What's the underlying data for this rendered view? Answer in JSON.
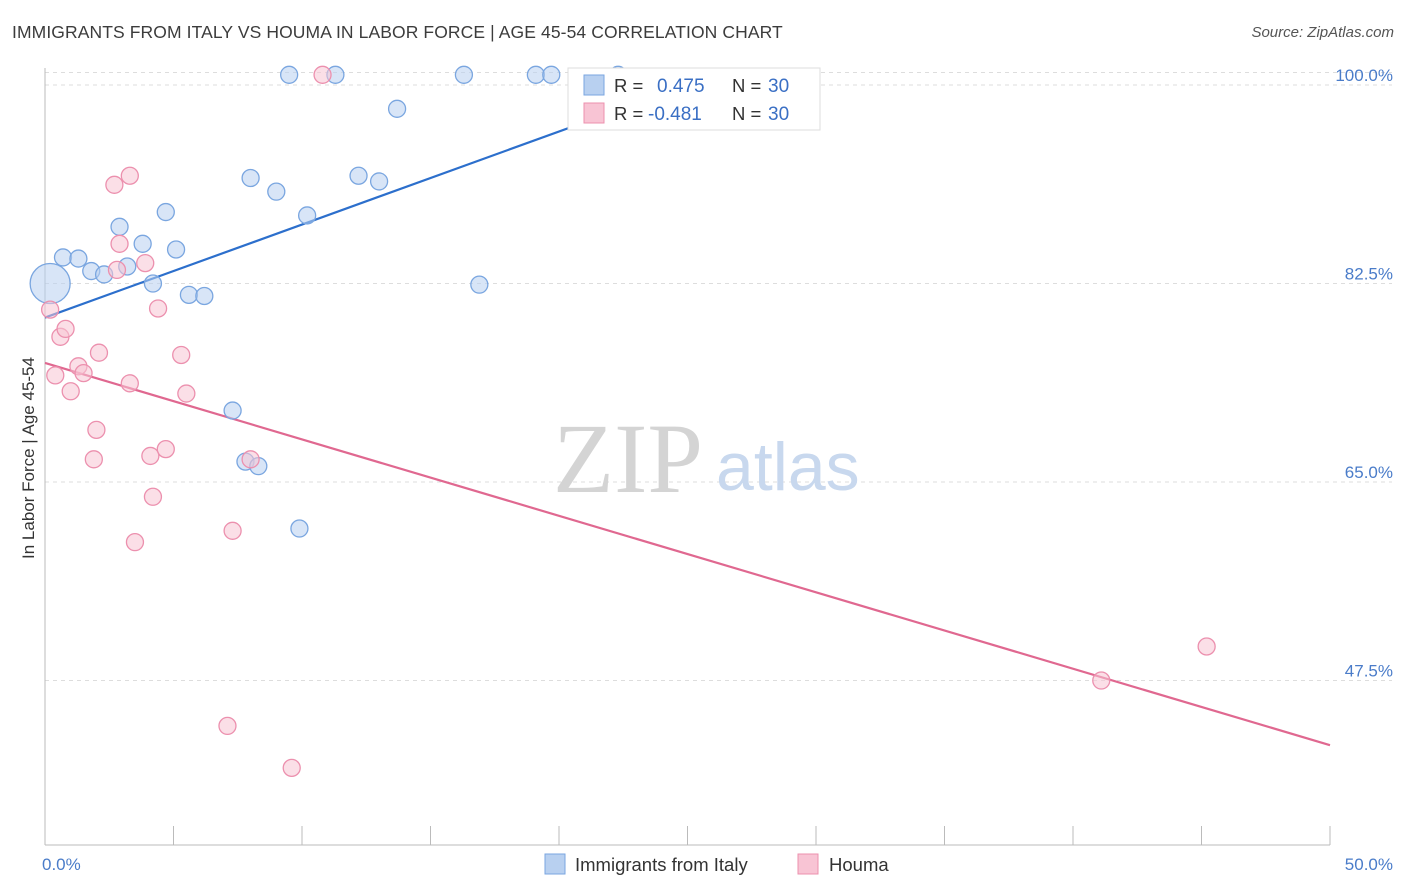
{
  "header": {
    "title": "IMMIGRANTS FROM ITALY VS HOUMA IN LABOR FORCE | AGE 45-54 CORRELATION CHART",
    "source": "Source: ZipAtlas.com"
  },
  "watermark": {
    "zip": "ZIP",
    "atlas": "atlas"
  },
  "chart_data": {
    "type": "scatter",
    "title": "IMMIGRANTS FROM ITALY VS HOUMA IN LABOR FORCE | AGE 45-54 CORRELATION CHART",
    "xlabel": "",
    "ylabel": "In Labor Force | Age 45-54",
    "xlim": [
      0,
      50
    ],
    "ylim": [
      33,
      101.5
    ],
    "x_tick_labels": [
      "0.0%",
      "50.0%"
    ],
    "y_ticks": [
      47.5,
      65.0,
      82.5,
      100.0
    ],
    "y_tick_labels": [
      "47.5%",
      "65.0%",
      "82.5%",
      "100.0%"
    ],
    "grid": true,
    "legend": {
      "placement": "top-center",
      "entries": [
        {
          "r_label": "R =",
          "r_value": "0.475",
          "n_label": "N =",
          "n_value": "30"
        },
        {
          "r_label": "R =",
          "r_value": "-0.481",
          "n_label": "N =",
          "n_value": "30"
        }
      ]
    },
    "bottom_legend": [
      "Immigrants from Italy",
      "Houma"
    ],
    "colors": {
      "italy_fill": "#b8d0f0",
      "italy_stroke": "#7aa6e0",
      "italy_line": "#2c6fcc",
      "houma_fill": "#f8c4d4",
      "houma_stroke": "#ec90ae",
      "houma_line": "#e06890",
      "grid": "#dddddd",
      "axis": "#bbbbbb",
      "tick_label": "#4a7cc9"
    },
    "series": [
      {
        "name": "Immigrants from Italy",
        "r": 0.475,
        "n": 30,
        "trend": {
          "x": [
            0.0,
            25.0
          ],
          "y": [
            79.5,
            100.0
          ]
        },
        "points": [
          {
            "x": 0.2,
            "y": 82.5,
            "big": true
          },
          {
            "x": 0.7,
            "y": 84.8
          },
          {
            "x": 1.3,
            "y": 84.7
          },
          {
            "x": 1.8,
            "y": 83.6
          },
          {
            "x": 2.3,
            "y": 83.3
          },
          {
            "x": 2.9,
            "y": 87.5
          },
          {
            "x": 3.2,
            "y": 84.0
          },
          {
            "x": 3.8,
            "y": 86.0
          },
          {
            "x": 4.2,
            "y": 82.5
          },
          {
            "x": 4.7,
            "y": 88.8
          },
          {
            "x": 5.1,
            "y": 85.5
          },
          {
            "x": 5.6,
            "y": 81.5
          },
          {
            "x": 6.2,
            "y": 81.4
          },
          {
            "x": 7.3,
            "y": 71.3
          },
          {
            "x": 7.8,
            "y": 66.8
          },
          {
            "x": 8.3,
            "y": 66.4
          },
          {
            "x": 8.0,
            "y": 91.8
          },
          {
            "x": 9.0,
            "y": 90.6
          },
          {
            "x": 9.5,
            "y": 100.9
          },
          {
            "x": 9.9,
            "y": 60.9
          },
          {
            "x": 10.2,
            "y": 88.5
          },
          {
            "x": 11.3,
            "y": 100.9
          },
          {
            "x": 12.2,
            "y": 92.0
          },
          {
            "x": 13.0,
            "y": 91.5
          },
          {
            "x": 13.7,
            "y": 97.9
          },
          {
            "x": 16.3,
            "y": 100.9
          },
          {
            "x": 16.9,
            "y": 82.4
          },
          {
            "x": 19.1,
            "y": 100.9
          },
          {
            "x": 19.7,
            "y": 100.9
          },
          {
            "x": 22.3,
            "y": 100.9
          }
        ]
      },
      {
        "name": "Houma",
        "r": -0.481,
        "n": 30,
        "trend": {
          "x": [
            0.0,
            50.0
          ],
          "y": [
            75.5,
            41.8
          ]
        },
        "points": [
          {
            "x": 0.2,
            "y": 80.2
          },
          {
            "x": 0.4,
            "y": 74.4
          },
          {
            "x": 0.6,
            "y": 77.8
          },
          {
            "x": 0.8,
            "y": 78.5
          },
          {
            "x": 1.0,
            "y": 73.0
          },
          {
            "x": 1.3,
            "y": 75.2
          },
          {
            "x": 1.5,
            "y": 74.6
          },
          {
            "x": 1.9,
            "y": 67.0
          },
          {
            "x": 2.0,
            "y": 69.6
          },
          {
            "x": 2.1,
            "y": 76.4
          },
          {
            "x": 2.7,
            "y": 91.2
          },
          {
            "x": 2.8,
            "y": 83.7
          },
          {
            "x": 2.9,
            "y": 86.0
          },
          {
            "x": 3.3,
            "y": 73.7
          },
          {
            "x": 3.3,
            "y": 92.0
          },
          {
            "x": 3.5,
            "y": 59.7
          },
          {
            "x": 3.9,
            "y": 84.3
          },
          {
            "x": 4.1,
            "y": 67.3
          },
          {
            "x": 4.2,
            "y": 63.7
          },
          {
            "x": 4.4,
            "y": 80.3
          },
          {
            "x": 4.7,
            "y": 67.9
          },
          {
            "x": 5.3,
            "y": 76.2
          },
          {
            "x": 5.5,
            "y": 72.8
          },
          {
            "x": 7.1,
            "y": 43.5
          },
          {
            "x": 7.3,
            "y": 60.7
          },
          {
            "x": 8.0,
            "y": 67.0
          },
          {
            "x": 9.6,
            "y": 39.8
          },
          {
            "x": 10.8,
            "y": 100.9
          },
          {
            "x": 41.1,
            "y": 47.5
          },
          {
            "x": 45.2,
            "y": 50.5
          }
        ]
      }
    ]
  }
}
